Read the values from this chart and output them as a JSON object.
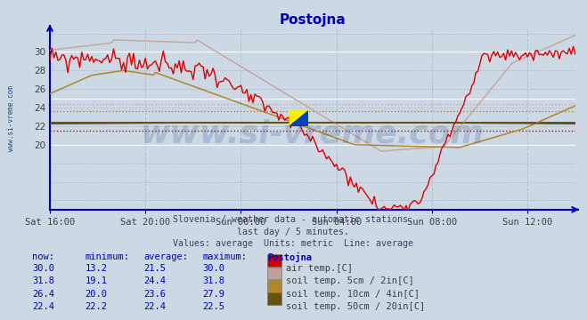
{
  "title": "Postojna",
  "background_color": "#ccd8e4",
  "plot_bg_color": "#ccd8e4",
  "subtitle_lines": [
    "Slovenia / weather data - automatic stations.",
    "last day / 5 minutes.",
    "Values: average  Units: metric  Line: average"
  ],
  "x_tick_labels": [
    "Sat 16:00",
    "Sat 20:00",
    "Sun 00:00",
    "Sun 04:00",
    "Sun 08:00",
    "Sun 12:00"
  ],
  "x_tick_positions": [
    0,
    48,
    96,
    144,
    192,
    240
  ],
  "n_points": 265,
  "ylim": [
    13.0,
    32.5
  ],
  "yticks": [
    20,
    22,
    24,
    26,
    28,
    30
  ],
  "line_colors": {
    "air": "#dd0000",
    "soil5": "#c8a8a0",
    "soil10": "#b08828",
    "soil50": "#685010"
  },
  "avg_lines": {
    "air": 21.5,
    "soil5": 24.4,
    "soil10": 23.6,
    "soil50": 22.4
  },
  "legend": [
    {
      "label": "air temp.[C]",
      "color": "#cc0000",
      "now": "30.0",
      "min": "13.2",
      "avg": "21.5",
      "max": "30.0"
    },
    {
      "label": "soil temp. 5cm / 2in[C]",
      "color": "#c0a098",
      "now": "31.8",
      "min": "19.1",
      "avg": "24.4",
      "max": "31.8"
    },
    {
      "label": "soil temp. 10cm / 4in[C]",
      "color": "#b08828",
      "now": "26.4",
      "min": "20.0",
      "avg": "23.6",
      "max": "27.9"
    },
    {
      "label": "soil temp. 50cm / 20in[C]",
      "color": "#685010",
      "now": "22.4",
      "min": "22.2",
      "avg": "22.4",
      "max": "22.5"
    }
  ],
  "watermark": "www.si-vreme.com",
  "watermark_color": "#1a3a8a",
  "watermark_alpha": 0.18,
  "left_label": "www.si-vreme.com",
  "left_label_color": "#1a5090"
}
